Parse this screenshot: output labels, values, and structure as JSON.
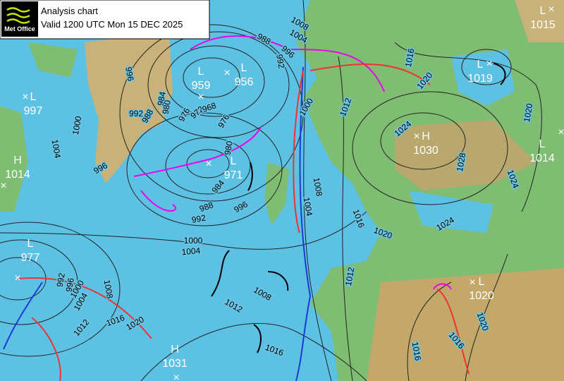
{
  "header": {
    "logo": "Met Office",
    "title": "Analysis chart",
    "valid": "Valid 1200 UTC Mon 15 DEC 2025"
  },
  "pressure_centers": [
    {
      "kind": "L",
      "value": 997
    },
    {
      "kind": "L",
      "value": 959
    },
    {
      "kind": "L",
      "value": 956
    },
    {
      "kind": "L",
      "value": 971
    },
    {
      "kind": "H",
      "value": 1014
    },
    {
      "kind": "L",
      "value": 977
    },
    {
      "kind": "H",
      "value": 1031
    },
    {
      "kind": "H",
      "value": 1030
    },
    {
      "kind": "L",
      "value": 1019
    },
    {
      "kind": "L",
      "value": 1015
    },
    {
      "kind": "L",
      "value": 1014
    },
    {
      "kind": "L",
      "value": 1020
    }
  ],
  "isobar_labels": [
    996,
    992,
    988,
    984,
    980,
    976,
    972,
    968,
    976,
    980,
    984,
    988,
    992,
    996,
    1000,
    1004,
    1000,
    1004,
    996,
    988,
    992,
    996,
    1008,
    1004,
    1000,
    1012,
    1016,
    1020,
    1024,
    1028,
    1024,
    1020,
    1016,
    1020,
    1024,
    1008,
    1004,
    1012,
    1008,
    1012,
    1016,
    1020,
    1016,
    1012,
    1008,
    1004,
    1000,
    996,
    992,
    1020,
    1016,
    1016
  ]
}
